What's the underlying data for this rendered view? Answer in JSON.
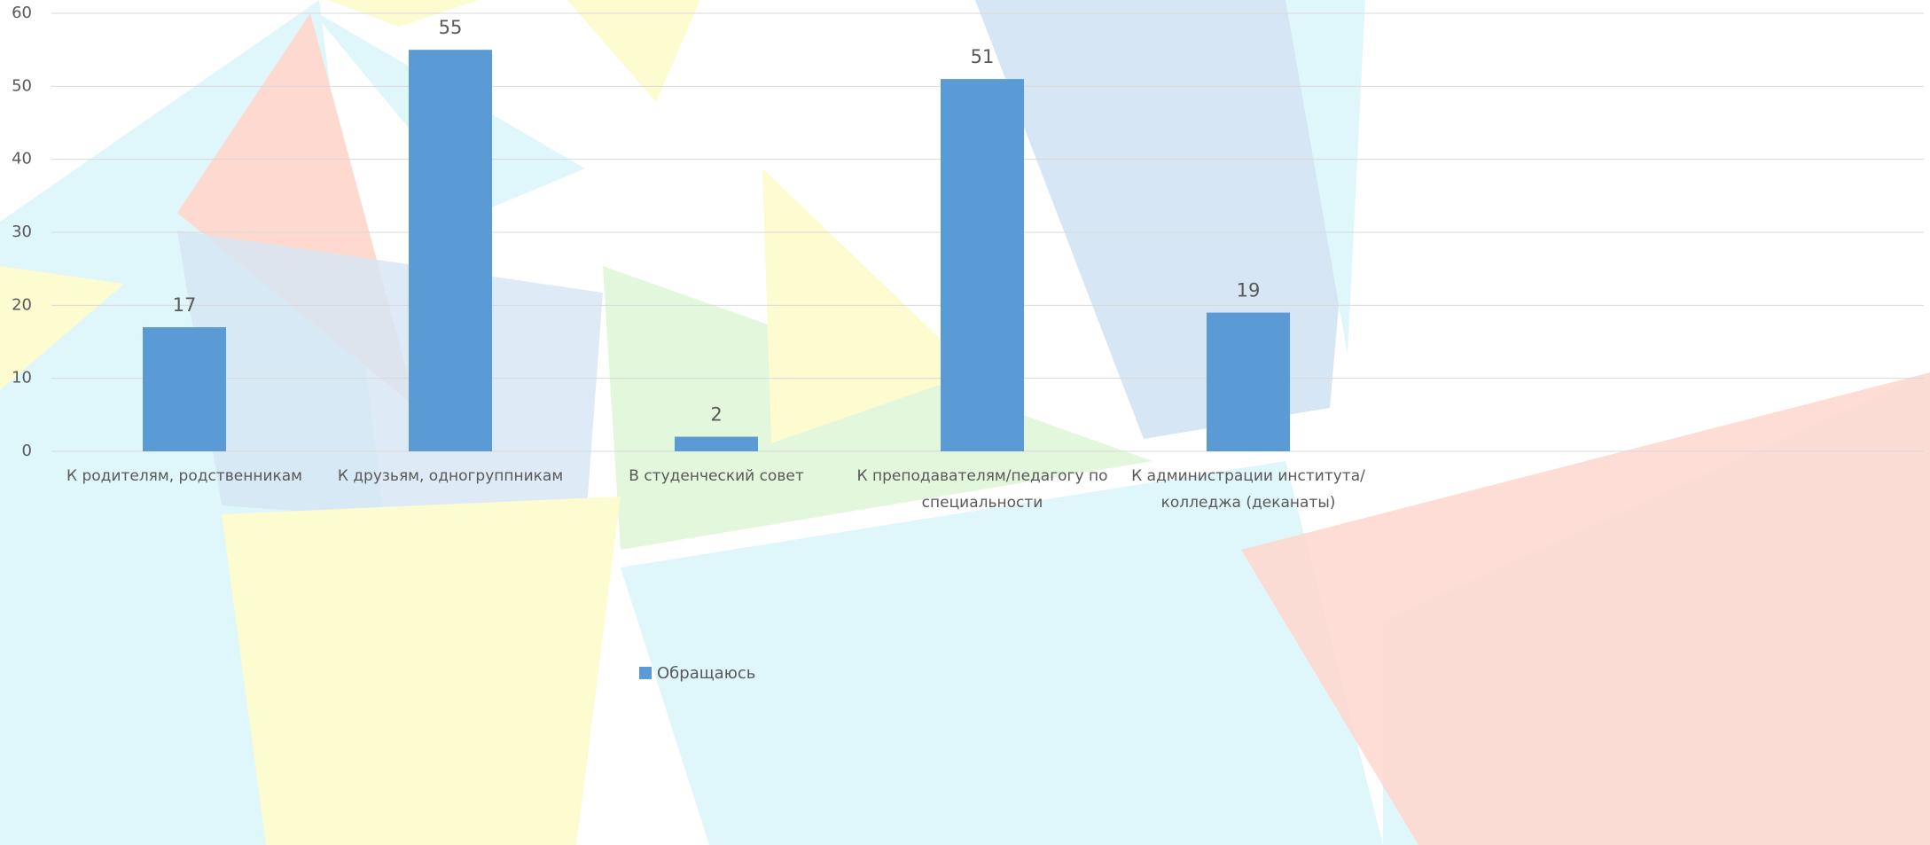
{
  "chart_data": {
    "type": "bar",
    "categories": [
      "К родителям, родственникам",
      "К друзьям, одногруппникам",
      "В студенческий совет",
      "К преподавателям/педагогу по специальности",
      "К администрации института/колледжа (деканаты)"
    ],
    "series": [
      {
        "name": "Обращаюсь",
        "color": "#5b9bd5",
        "values": [
          17,
          55,
          2,
          51,
          19
        ]
      }
    ],
    "ylim": [
      0,
      60
    ],
    "yticks": [
      0,
      10,
      20,
      30,
      40,
      50,
      60
    ],
    "grid": true,
    "legend": "bottom"
  }
}
